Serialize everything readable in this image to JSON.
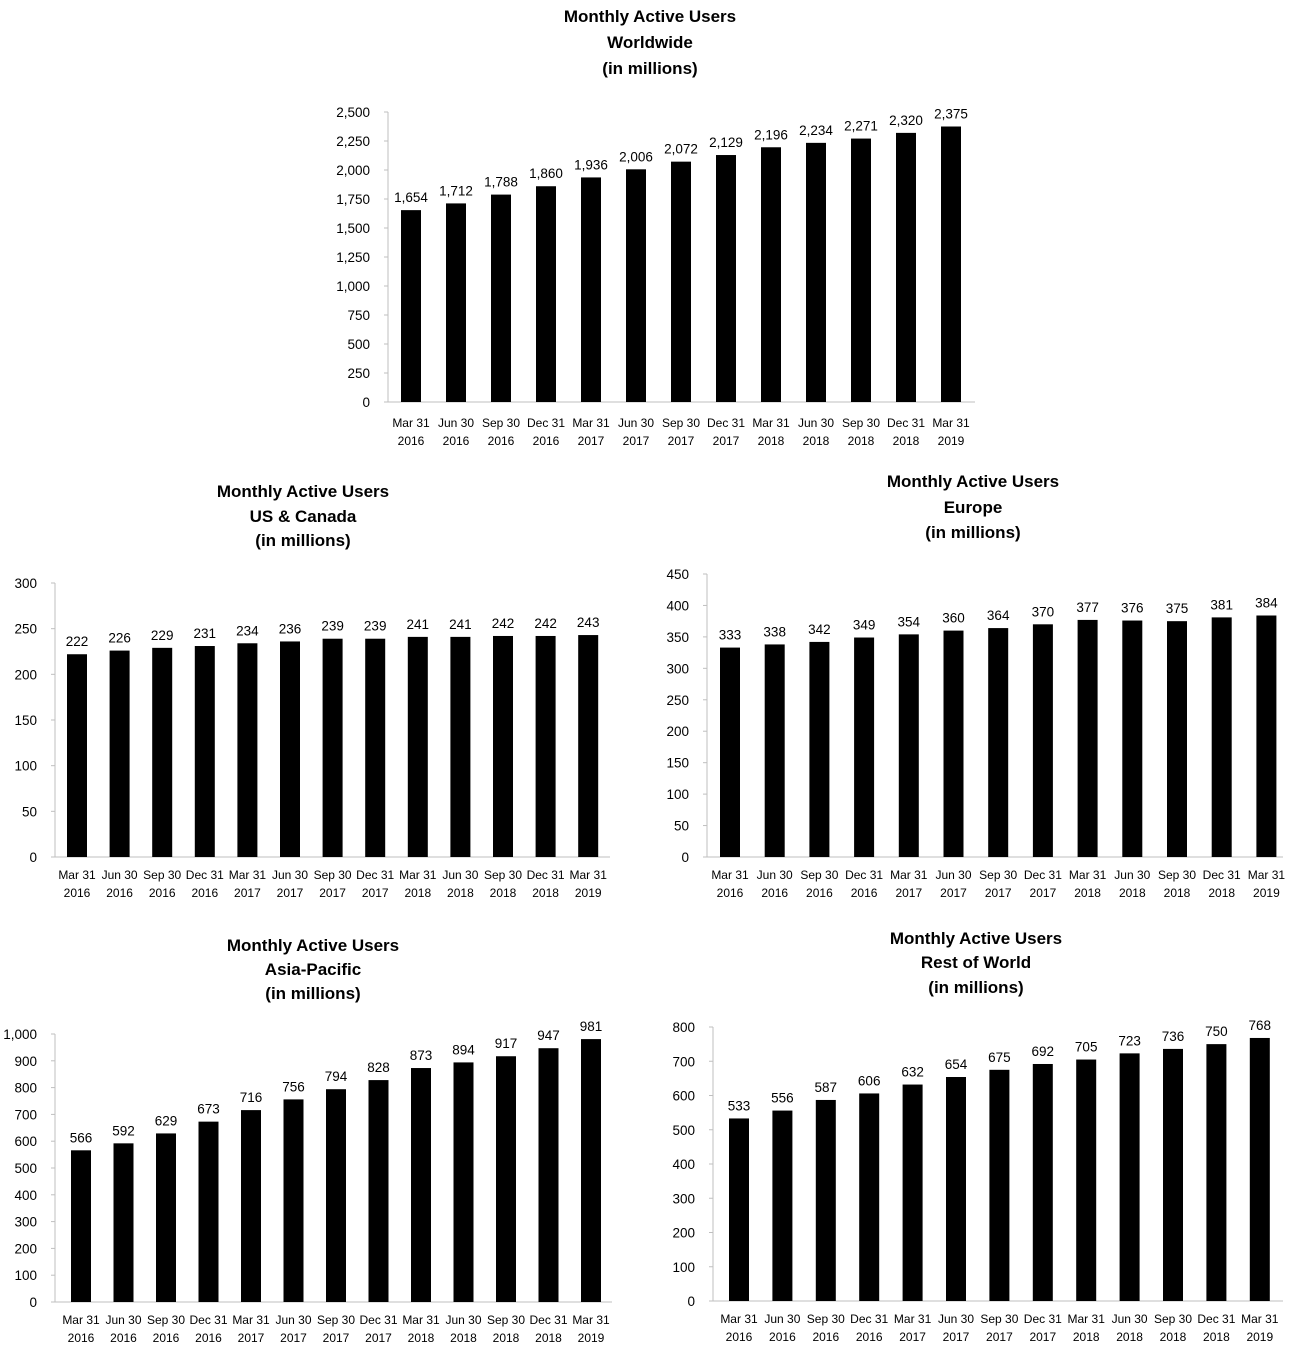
{
  "chart_data": [
    {
      "type": "bar",
      "title": [
        "Monthly Active Users",
        "Worldwide",
        "(in millions)"
      ],
      "categories": [
        [
          "Mar 31",
          "2016"
        ],
        [
          "Jun 30",
          "2016"
        ],
        [
          "Sep 30",
          "2016"
        ],
        [
          "Dec 31",
          "2016"
        ],
        [
          "Mar 31",
          "2017"
        ],
        [
          "Jun 30",
          "2017"
        ],
        [
          "Sep 30",
          "2017"
        ],
        [
          "Dec 31",
          "2017"
        ],
        [
          "Mar 31",
          "2018"
        ],
        [
          "Jun 30",
          "2018"
        ],
        [
          "Sep 30",
          "2018"
        ],
        [
          "Dec 31",
          "2018"
        ],
        [
          "Mar 31",
          "2019"
        ]
      ],
      "values": [
        1654,
        1712,
        1788,
        1860,
        1936,
        2006,
        2072,
        2129,
        2196,
        2234,
        2271,
        2320,
        2375
      ],
      "ylim": [
        0,
        2500
      ],
      "yticks": [
        0,
        250,
        500,
        750,
        1000,
        1250,
        1500,
        1750,
        2000,
        2250,
        2500
      ],
      "bar_color": "#000000",
      "grid": false
    },
    {
      "type": "bar",
      "title": [
        "Monthly Active Users",
        "US & Canada",
        "(in millions)"
      ],
      "categories": [
        [
          "Mar 31",
          "2016"
        ],
        [
          "Jun 30",
          "2016"
        ],
        [
          "Sep 30",
          "2016"
        ],
        [
          "Dec 31",
          "2016"
        ],
        [
          "Mar 31",
          "2017"
        ],
        [
          "Jun 30",
          "2017"
        ],
        [
          "Sep 30",
          "2017"
        ],
        [
          "Dec 31",
          "2017"
        ],
        [
          "Mar 31",
          "2018"
        ],
        [
          "Jun 30",
          "2018"
        ],
        [
          "Sep 30",
          "2018"
        ],
        [
          "Dec 31",
          "2018"
        ],
        [
          "Mar 31",
          "2019"
        ]
      ],
      "values": [
        222,
        226,
        229,
        231,
        234,
        236,
        239,
        239,
        241,
        241,
        242,
        242,
        243
      ],
      "ylim": [
        0,
        300
      ],
      "yticks": [
        0,
        50,
        100,
        150,
        200,
        250,
        300
      ],
      "bar_color": "#000000",
      "grid": false
    },
    {
      "type": "bar",
      "title": [
        "Monthly Active Users",
        "Europe",
        "(in millions)"
      ],
      "categories": [
        [
          "Mar 31",
          "2016"
        ],
        [
          "Jun 30",
          "2016"
        ],
        [
          "Sep 30",
          "2016"
        ],
        [
          "Dec 31",
          "2016"
        ],
        [
          "Mar 31",
          "2017"
        ],
        [
          "Jun 30",
          "2017"
        ],
        [
          "Sep 30",
          "2017"
        ],
        [
          "Dec 31",
          "2017"
        ],
        [
          "Mar 31",
          "2018"
        ],
        [
          "Jun 30",
          "2018"
        ],
        [
          "Sep 30",
          "2018"
        ],
        [
          "Dec 31",
          "2018"
        ],
        [
          "Mar 31",
          "2019"
        ]
      ],
      "values": [
        333,
        338,
        342,
        349,
        354,
        360,
        364,
        370,
        377,
        376,
        375,
        381,
        384
      ],
      "ylim": [
        0,
        450
      ],
      "yticks": [
        0,
        50,
        100,
        150,
        200,
        250,
        300,
        350,
        400,
        450
      ],
      "bar_color": "#000000",
      "grid": false
    },
    {
      "type": "bar",
      "title": [
        "Monthly Active Users",
        "Asia-Pacific",
        "(in millions)"
      ],
      "categories": [
        [
          "Mar 31",
          "2016"
        ],
        [
          "Jun 30",
          "2016"
        ],
        [
          "Sep 30",
          "2016"
        ],
        [
          "Dec 31",
          "2016"
        ],
        [
          "Mar 31",
          "2017"
        ],
        [
          "Jun 30",
          "2017"
        ],
        [
          "Sep 30",
          "2017"
        ],
        [
          "Dec 31",
          "2017"
        ],
        [
          "Mar 31",
          "2018"
        ],
        [
          "Jun 30",
          "2018"
        ],
        [
          "Sep 30",
          "2018"
        ],
        [
          "Dec 31",
          "2018"
        ],
        [
          "Mar 31",
          "2019"
        ]
      ],
      "values": [
        566,
        592,
        629,
        673,
        716,
        756,
        794,
        828,
        873,
        894,
        917,
        947,
        981
      ],
      "ylim": [
        0,
        1000
      ],
      "yticks": [
        0,
        100,
        200,
        300,
        400,
        500,
        600,
        700,
        800,
        900,
        1000
      ],
      "bar_color": "#000000",
      "grid": false
    },
    {
      "type": "bar",
      "title": [
        "Monthly Active Users",
        "Rest of World",
        "(in millions)"
      ],
      "categories": [
        [
          "Mar 31",
          "2016"
        ],
        [
          "Jun 30",
          "2016"
        ],
        [
          "Sep 30",
          "2016"
        ],
        [
          "Dec 31",
          "2016"
        ],
        [
          "Mar 31",
          "2017"
        ],
        [
          "Jun 30",
          "2017"
        ],
        [
          "Sep 30",
          "2017"
        ],
        [
          "Dec 31",
          "2017"
        ],
        [
          "Mar 31",
          "2018"
        ],
        [
          "Jun 30",
          "2018"
        ],
        [
          "Sep 30",
          "2018"
        ],
        [
          "Dec 31",
          "2018"
        ],
        [
          "Mar 31",
          "2019"
        ]
      ],
      "values": [
        533,
        556,
        587,
        606,
        632,
        654,
        675,
        692,
        705,
        723,
        736,
        750,
        768
      ],
      "ylim": [
        0,
        800
      ],
      "yticks": [
        0,
        100,
        200,
        300,
        400,
        500,
        600,
        700,
        800
      ],
      "bar_color": "#000000",
      "grid": false
    }
  ]
}
